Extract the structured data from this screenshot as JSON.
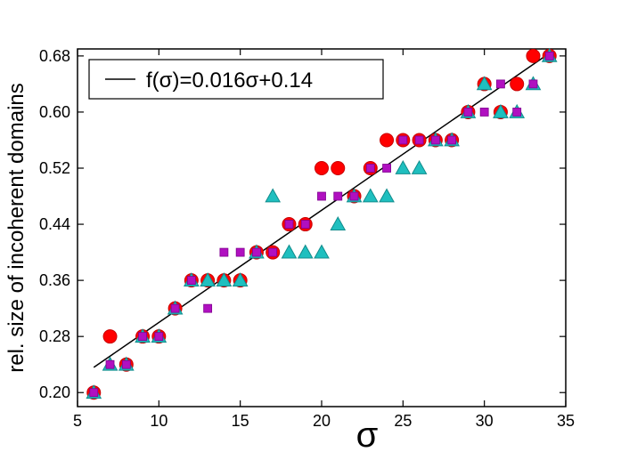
{
  "chart_data": {
    "type": "scatter",
    "title": "",
    "xlabel": "σ",
    "ylabel": "rel. size of incoherent domains",
    "xlim": [
      5,
      35
    ],
    "ylim": [
      0.18,
      0.69
    ],
    "xticks": [
      5,
      10,
      15,
      20,
      25,
      30,
      35
    ],
    "xtick_labels": [
      "5",
      "10",
      "15",
      "20",
      "25",
      "30",
      "35"
    ],
    "yticks": [
      0.2,
      0.28,
      0.36,
      0.44,
      0.52,
      0.6,
      0.68
    ],
    "ytick_labels": [
      "0.20",
      "0.28",
      "0.36",
      "0.44",
      "0.52",
      "0.60",
      "0.68"
    ],
    "grid": false,
    "legend": {
      "position": "top-left",
      "entries": [
        "f(σ)=0.016σ+0.14"
      ]
    },
    "fit_line": {
      "label": "f(σ)=0.016σ+0.14",
      "slope": 0.016,
      "intercept": 0.14,
      "x_range": [
        6,
        34
      ],
      "color": "#000000"
    },
    "series": [
      {
        "marker": "circle",
        "color": "#ff0000",
        "edge": "#c80000",
        "points": [
          [
            6,
            0.2
          ],
          [
            7,
            0.28
          ],
          [
            8,
            0.24
          ],
          [
            9,
            0.28
          ],
          [
            10,
            0.28
          ],
          [
            11,
            0.32
          ],
          [
            12,
            0.36
          ],
          [
            13,
            0.36
          ],
          [
            14,
            0.36
          ],
          [
            15,
            0.36
          ],
          [
            16,
            0.4
          ],
          [
            17,
            0.4
          ],
          [
            18,
            0.44
          ],
          [
            19,
            0.44
          ],
          [
            20,
            0.52
          ],
          [
            21,
            0.52
          ],
          [
            22,
            0.48
          ],
          [
            23,
            0.52
          ],
          [
            24,
            0.56
          ],
          [
            25,
            0.56
          ],
          [
            26,
            0.56
          ],
          [
            27,
            0.56
          ],
          [
            28,
            0.56
          ],
          [
            29,
            0.6
          ],
          [
            30,
            0.64
          ],
          [
            31,
            0.6
          ],
          [
            32,
            0.64
          ],
          [
            33,
            0.68
          ],
          [
            34,
            0.68
          ]
        ]
      },
      {
        "marker": "triangle",
        "color": "#1fbfbf",
        "edge": "#118c8c",
        "points": [
          [
            6,
            0.2
          ],
          [
            7,
            0.24
          ],
          [
            8,
            0.24
          ],
          [
            9,
            0.28
          ],
          [
            10,
            0.28
          ],
          [
            11,
            0.32
          ],
          [
            12,
            0.36
          ],
          [
            13,
            0.36
          ],
          [
            14,
            0.36
          ],
          [
            15,
            0.36
          ],
          [
            16,
            0.4
          ],
          [
            17,
            0.48
          ],
          [
            18,
            0.4
          ],
          [
            19,
            0.4
          ],
          [
            20,
            0.4
          ],
          [
            21,
            0.44
          ],
          [
            22,
            0.48
          ],
          [
            23,
            0.48
          ],
          [
            24,
            0.48
          ],
          [
            25,
            0.52
          ],
          [
            26,
            0.52
          ],
          [
            27,
            0.56
          ],
          [
            28,
            0.56
          ],
          [
            29,
            0.6
          ],
          [
            30,
            0.64
          ],
          [
            31,
            0.6
          ],
          [
            32,
            0.6
          ],
          [
            33,
            0.64
          ],
          [
            34,
            0.68
          ]
        ]
      },
      {
        "marker": "square",
        "color": "#b010c0",
        "edge": "#800090",
        "points": [
          [
            6,
            0.2
          ],
          [
            7,
            0.24
          ],
          [
            8,
            0.24
          ],
          [
            9,
            0.28
          ],
          [
            10,
            0.28
          ],
          [
            11,
            0.32
          ],
          [
            12,
            0.36
          ],
          [
            13,
            0.32
          ],
          [
            14,
            0.4
          ],
          [
            15,
            0.4
          ],
          [
            16,
            0.4
          ],
          [
            17,
            0.4
          ],
          [
            18,
            0.44
          ],
          [
            19,
            0.44
          ],
          [
            20,
            0.48
          ],
          [
            21,
            0.48
          ],
          [
            22,
            0.48
          ],
          [
            23,
            0.52
          ],
          [
            24,
            0.52
          ],
          [
            25,
            0.56
          ],
          [
            26,
            0.56
          ],
          [
            27,
            0.56
          ],
          [
            28,
            0.56
          ],
          [
            29,
            0.6
          ],
          [
            30,
            0.6
          ],
          [
            31,
            0.64
          ],
          [
            32,
            0.6
          ],
          [
            33,
            0.64
          ],
          [
            34,
            0.68
          ]
        ]
      }
    ]
  }
}
